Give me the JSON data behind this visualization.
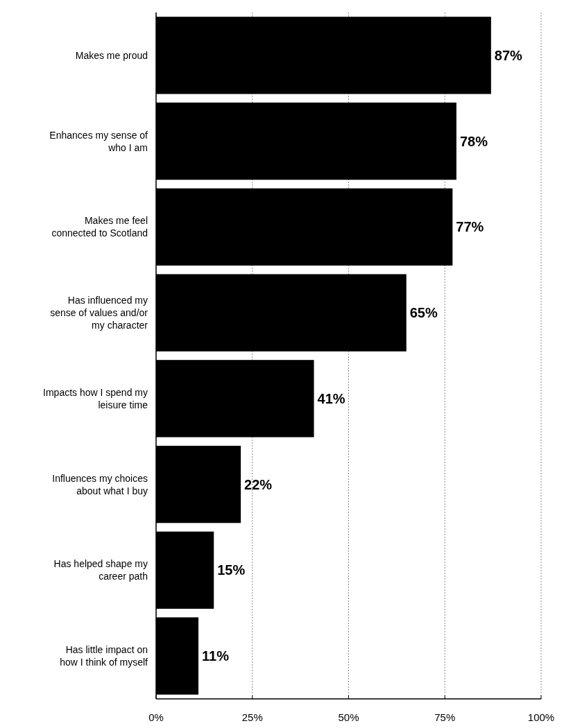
{
  "chart_data": {
    "type": "bar",
    "orientation": "horizontal",
    "categories": [
      "Makes me proud",
      "Enhances my sense of who I am",
      "Makes me feel connected to Scotland",
      "Has influenced my sense of values and/or my character",
      "Impacts how I spend my leisure time",
      "Influences my choices about what I buy",
      "Has helped shape my career path",
      "Has little impact on how I think of myself"
    ],
    "values": [
      87,
      78,
      77,
      65,
      41,
      22,
      15,
      11
    ],
    "color": "#000000",
    "value_labels": [
      "87%",
      "78%",
      "77%",
      "65%",
      "41%",
      "22%",
      "15%",
      "11%"
    ],
    "xlim": [
      0,
      100
    ],
    "xticks": [
      {
        "value": 0,
        "label": "0%"
      },
      {
        "value": 25,
        "label": "25%"
      },
      {
        "value": 50,
        "label": "50%"
      },
      {
        "value": 75,
        "label": "75%"
      },
      {
        "value": 100,
        "label": "100%"
      }
    ],
    "grid": "x"
  }
}
